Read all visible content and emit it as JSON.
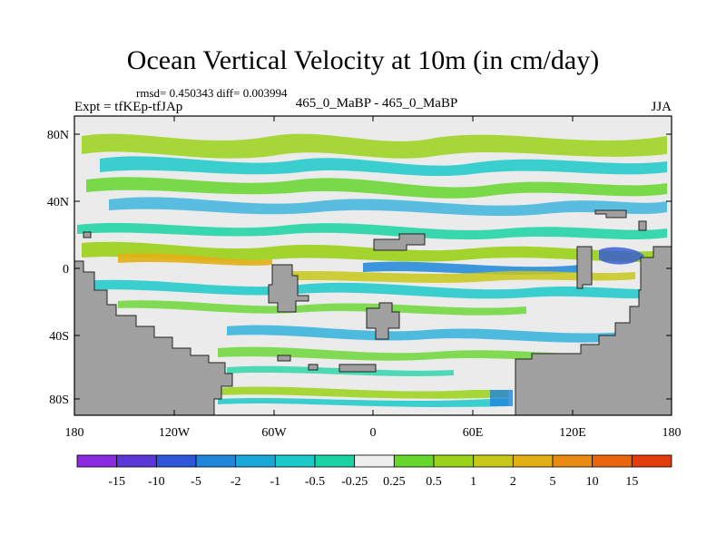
{
  "header": {
    "title": "Ocean Vertical Velocity at 10m (in cm/day)",
    "stats": "rmsd= 0.450343 diff= 0.003994",
    "experiment": "Expt = tfKEp-tfJAp",
    "case": "465_0_MaBP - 465_0_MaBP",
    "season": "JJA"
  },
  "map": {
    "lat_ticks": [
      "80N",
      "40N",
      "0",
      "40S",
      "80S"
    ],
    "lon_ticks": [
      "180",
      "120W",
      "60W",
      "0",
      "60E",
      "120E",
      "180"
    ],
    "land_color": "#a0a0a0",
    "ocean_background": "#ebebeb"
  },
  "colorbar": {
    "labels": [
      "-15",
      "-10",
      "-5",
      "-2",
      "-1",
      "-0.5",
      "-0.25",
      "0.25",
      "0.5",
      "1",
      "2",
      "5",
      "10",
      "15"
    ],
    "colors": [
      "#8a2be2",
      "#5b37d8",
      "#2f56d8",
      "#1f86d9",
      "#19a9d8",
      "#1cc9c9",
      "#1ad3a3",
      "#eeeeee",
      "#66d62d",
      "#9bd21a",
      "#c8c81a",
      "#e2b015",
      "#e98a12",
      "#e9660f",
      "#e23b0c"
    ]
  }
}
